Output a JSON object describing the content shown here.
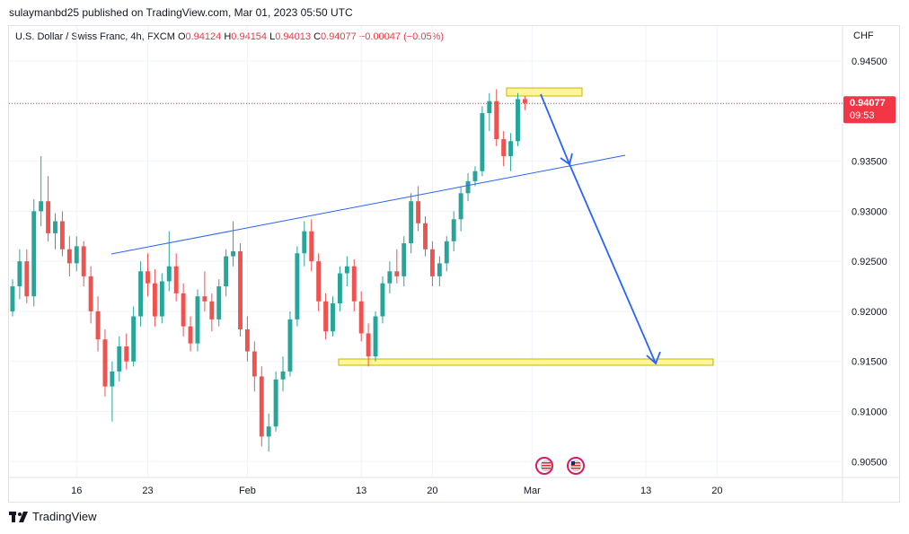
{
  "publisher_line": "sulaymanbd25 published on TradingView.com, Mar 01, 2023 05:50 UTC",
  "legend": {
    "symbol": "U.S. Dollar / Swiss Franc, 4h, FXCM",
    "open_label": "O",
    "open": "0.94124",
    "high_label": "H",
    "high": "0.94154",
    "low_label": "L",
    "low": "0.94013",
    "close_label": "C",
    "close": "0.94077",
    "change": "−0.00047 (−0.05%)"
  },
  "currency": "CHF",
  "price_badge": {
    "price": "0.94077",
    "countdown": "09:53"
  },
  "footer": {
    "brand": "TradingView"
  },
  "colors": {
    "up": "#26a69a",
    "down": "#ef5350",
    "trendline": "#2962ff",
    "zone": "#fff59d",
    "badge": "#f23645"
  },
  "chart_data": {
    "type": "candlestick",
    "instrument": "U.S. Dollar / Swiss Franc",
    "timeframe": "4h",
    "ylim": [
      0.9035,
      0.9485
    ],
    "y_ticks": [
      "0.90500",
      "0.91000",
      "0.91500",
      "0.92000",
      "0.92500",
      "0.93000",
      "0.93500",
      "0.94500"
    ],
    "y_tick_values": [
      0.905,
      0.91,
      0.915,
      0.92,
      0.925,
      0.93,
      0.935,
      0.945
    ],
    "x_index_range": [
      0,
      117
    ],
    "x_ticks": [
      {
        "label": "16",
        "index": 9
      },
      {
        "label": "23",
        "index": 19
      },
      {
        "label": "Feb",
        "index": 33
      },
      {
        "label": "13",
        "index": 49
      },
      {
        "label": "20",
        "index": 59
      },
      {
        "label": "Mar",
        "index": 73
      },
      {
        "label": "13",
        "index": 89
      },
      {
        "label": "20",
        "index": 99
      }
    ],
    "last_price": 0.94077,
    "candles": [
      [
        0.92,
        0.9232,
        0.9195,
        0.9225
      ],
      [
        0.9225,
        0.9262,
        0.9212,
        0.925
      ],
      [
        0.925,
        0.9262,
        0.9208,
        0.9215
      ],
      [
        0.9215,
        0.9312,
        0.9205,
        0.93
      ],
      [
        0.93,
        0.9355,
        0.9285,
        0.931
      ],
      [
        0.931,
        0.9335,
        0.927,
        0.9278
      ],
      [
        0.9278,
        0.9298,
        0.9262,
        0.929
      ],
      [
        0.929,
        0.93,
        0.9255,
        0.9262
      ],
      [
        0.9262,
        0.9275,
        0.9235,
        0.9248
      ],
      [
        0.9248,
        0.9275,
        0.924,
        0.9265
      ],
      [
        0.9265,
        0.927,
        0.9225,
        0.9235
      ],
      [
        0.9235,
        0.9245,
        0.9188,
        0.92
      ],
      [
        0.92,
        0.9215,
        0.916,
        0.9172
      ],
      [
        0.9172,
        0.9182,
        0.9115,
        0.9125
      ],
      [
        0.9125,
        0.915,
        0.909,
        0.914
      ],
      [
        0.914,
        0.9175,
        0.913,
        0.9165
      ],
      [
        0.9165,
        0.9178,
        0.9142,
        0.915
      ],
      [
        0.915,
        0.9205,
        0.9145,
        0.9195
      ],
      [
        0.9195,
        0.925,
        0.9185,
        0.924
      ],
      [
        0.924,
        0.9258,
        0.9215,
        0.9228
      ],
      [
        0.9228,
        0.9242,
        0.9185,
        0.9195
      ],
      [
        0.9195,
        0.9238,
        0.9188,
        0.923
      ],
      [
        0.923,
        0.928,
        0.922,
        0.9245
      ],
      [
        0.9245,
        0.9258,
        0.921,
        0.9218
      ],
      [
        0.9218,
        0.9228,
        0.9175,
        0.9185
      ],
      [
        0.9185,
        0.9195,
        0.916,
        0.9168
      ],
      [
        0.9168,
        0.9222,
        0.916,
        0.9215
      ],
      [
        0.9215,
        0.924,
        0.92,
        0.921
      ],
      [
        0.921,
        0.9218,
        0.918,
        0.9192
      ],
      [
        0.9192,
        0.9232,
        0.9185,
        0.9225
      ],
      [
        0.9225,
        0.9262,
        0.9215,
        0.9255
      ],
      [
        0.9255,
        0.929,
        0.9245,
        0.926
      ],
      [
        0.926,
        0.9268,
        0.9175,
        0.9182
      ],
      [
        0.9182,
        0.9195,
        0.915,
        0.916
      ],
      [
        0.916,
        0.917,
        0.912,
        0.9135
      ],
      [
        0.9135,
        0.9145,
        0.9065,
        0.9075
      ],
      [
        0.9075,
        0.9098,
        0.906,
        0.9085
      ],
      [
        0.9085,
        0.914,
        0.908,
        0.9132
      ],
      [
        0.9132,
        0.9155,
        0.912,
        0.914
      ],
      [
        0.914,
        0.92,
        0.9135,
        0.9192
      ],
      [
        0.9192,
        0.9265,
        0.9185,
        0.9258
      ],
      [
        0.9258,
        0.929,
        0.9245,
        0.928
      ],
      [
        0.928,
        0.9292,
        0.924,
        0.925
      ],
      [
        0.925,
        0.9258,
        0.92,
        0.921
      ],
      [
        0.921,
        0.9218,
        0.9172,
        0.918
      ],
      [
        0.918,
        0.9215,
        0.9175,
        0.9208
      ],
      [
        0.9208,
        0.9245,
        0.92,
        0.9238
      ],
      [
        0.9238,
        0.9255,
        0.9225,
        0.9245
      ],
      [
        0.9245,
        0.9252,
        0.92,
        0.921
      ],
      [
        0.921,
        0.922,
        0.917,
        0.9178
      ],
      [
        0.9178,
        0.9188,
        0.9145,
        0.9155
      ],
      [
        0.9155,
        0.92,
        0.915,
        0.9195
      ],
      [
        0.9195,
        0.9235,
        0.9188,
        0.9228
      ],
      [
        0.9228,
        0.925,
        0.9218,
        0.924
      ],
      [
        0.924,
        0.9262,
        0.9228,
        0.9235
      ],
      [
        0.9235,
        0.9275,
        0.9225,
        0.9268
      ],
      [
        0.9268,
        0.9318,
        0.9258,
        0.931
      ],
      [
        0.931,
        0.9325,
        0.928,
        0.9288
      ],
      [
        0.9288,
        0.9295,
        0.9255,
        0.9262
      ],
      [
        0.9262,
        0.927,
        0.9225,
        0.9235
      ],
      [
        0.9235,
        0.9255,
        0.9225,
        0.9248
      ],
      [
        0.9248,
        0.9275,
        0.924,
        0.927
      ],
      [
        0.927,
        0.93,
        0.926,
        0.9292
      ],
      [
        0.9292,
        0.9325,
        0.928,
        0.9318
      ],
      [
        0.9318,
        0.9338,
        0.931,
        0.933
      ],
      [
        0.933,
        0.9345,
        0.9325,
        0.934
      ],
      [
        0.934,
        0.9405,
        0.9335,
        0.9398
      ],
      [
        0.9398,
        0.9418,
        0.938,
        0.941
      ],
      [
        0.941,
        0.9422,
        0.9365,
        0.9372
      ],
      [
        0.9372,
        0.938,
        0.9345,
        0.9355
      ],
      [
        0.9355,
        0.9378,
        0.934,
        0.937
      ],
      [
        0.937,
        0.9418,
        0.9365,
        0.9412
      ],
      [
        0.9412,
        0.9415,
        0.9401,
        0.9408
      ]
    ]
  }
}
